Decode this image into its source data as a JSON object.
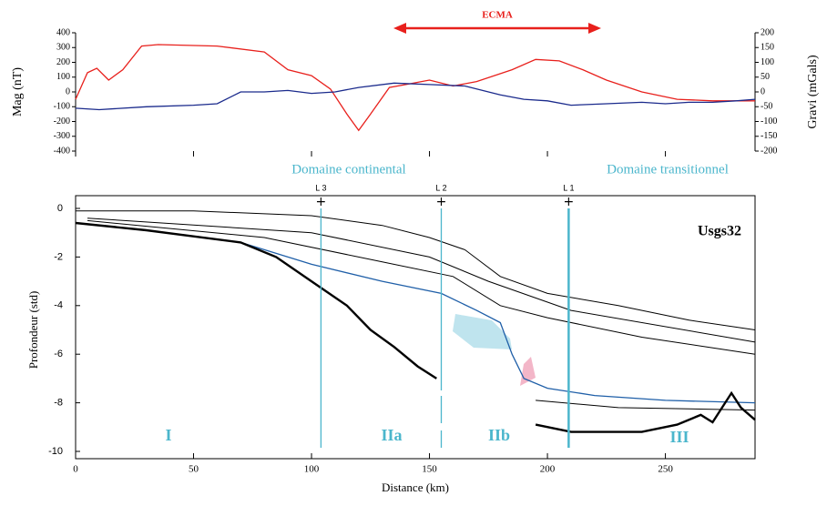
{
  "chart_data": [
    {
      "type": "line",
      "annotation": "ECMA",
      "ylabel": "Mag (nT)",
      "y2label": "Gravi (mGals)",
      "xlim": [
        0,
        288
      ],
      "ylim": [
        -400,
        400
      ],
      "yticks": [
        -400,
        -300,
        -200,
        -100,
        0,
        100,
        200,
        300,
        400
      ],
      "y2lim": [
        -200,
        200
      ],
      "y2ticks": [
        -200,
        -150,
        -100,
        -50,
        0,
        50,
        100,
        150,
        200
      ],
      "series": [
        {
          "name": "Mag",
          "color": "#e8201c",
          "x": [
            0,
            5,
            9,
            14,
            20,
            28,
            35,
            60,
            80,
            90,
            100,
            108,
            115,
            120,
            125,
            133,
            140,
            150,
            160,
            170,
            185,
            195,
            205,
            215,
            225,
            240,
            255,
            270,
            288
          ],
          "values": [
            -50,
            130,
            160,
            80,
            150,
            310,
            320,
            310,
            270,
            150,
            110,
            20,
            -150,
            -260,
            -150,
            30,
            50,
            80,
            40,
            70,
            150,
            220,
            210,
            150,
            80,
            0,
            -50,
            -60,
            -60
          ]
        },
        {
          "name": "Gravi",
          "color": "#1a2a8c",
          "axis": "y2",
          "x": [
            0,
            10,
            30,
            50,
            60,
            70,
            80,
            90,
            100,
            110,
            120,
            135,
            150,
            165,
            180,
            190,
            200,
            210,
            225,
            240,
            250,
            260,
            270,
            280,
            288
          ],
          "values": [
            -55,
            -60,
            -50,
            -45,
            -40,
            0,
            0,
            5,
            -5,
            0,
            15,
            30,
            25,
            20,
            -10,
            -25,
            -30,
            -45,
            -40,
            -35,
            -40,
            -35,
            -35,
            -30,
            -25
          ]
        }
      ]
    },
    {
      "type": "section",
      "xlabel": "Distance (km)",
      "ylabel": "Profondeur (std)",
      "xlim": [
        0,
        288
      ],
      "xticks": [
        0,
        50,
        100,
        150,
        200,
        250
      ],
      "ylim": [
        -10,
        0
      ],
      "yticks": [
        0,
        -2,
        -4,
        -6,
        -8,
        -10
      ],
      "annotations": [
        "Domaine continental",
        "Domaine transitionnel",
        "Usgs32",
        "I",
        "IIa",
        "IIb",
        "III"
      ],
      "wells": [
        {
          "name": "L 3",
          "x": 104
        },
        {
          "name": "L 2",
          "x": 155
        },
        {
          "name": "L 1",
          "x": 209
        }
      ],
      "series": [
        {
          "color": "#000000",
          "width": 1,
          "x": [
            0,
            50,
            100,
            130,
            150,
            165,
            180,
            200,
            230,
            260,
            288
          ],
          "values": [
            -0.1,
            -0.1,
            -0.3,
            -0.7,
            -1.2,
            -1.7,
            -2.8,
            -3.5,
            -4.0,
            -4.6,
            -5.0
          ]
        },
        {
          "color": "#000000",
          "width": 1,
          "x": [
            5,
            100,
            150,
            175,
            210,
            288
          ],
          "values": [
            -0.4,
            -1.0,
            -2.0,
            -3.0,
            -4.2,
            -5.5
          ]
        },
        {
          "color": "#000000",
          "width": 1,
          "x": [
            5,
            80,
            130,
            160,
            180,
            200,
            240,
            288
          ],
          "values": [
            -0.5,
            -1.2,
            -2.2,
            -2.8,
            -4.0,
            -4.5,
            -5.3,
            -6.0
          ]
        },
        {
          "color": "#1f5fa8",
          "width": 1.3,
          "x": [
            70,
            100,
            130,
            155,
            170,
            180,
            185,
            190,
            200,
            220,
            250,
            288
          ],
          "values": [
            -1.4,
            -2.3,
            -3.0,
            -3.5,
            -4.2,
            -4.7,
            -6.0,
            -7.0,
            -7.4,
            -7.7,
            -7.9,
            -8.0
          ]
        },
        {
          "color": "#000000",
          "width": 1,
          "x": [
            195,
            230,
            288
          ],
          "values": [
            -7.9,
            -8.2,
            -8.3
          ]
        },
        {
          "color": "#000000",
          "width": 2.4,
          "x": [
            0,
            30,
            70,
            85,
            100,
            115,
            125,
            135,
            145,
            153
          ],
          "values": [
            -0.6,
            -0.9,
            -1.4,
            -2.0,
            -3.0,
            -4.0,
            -5.0,
            -5.7,
            -6.5,
            -7.0
          ]
        },
        {
          "color": "#000000",
          "width": 2.4,
          "x": [
            195,
            210,
            240,
            255,
            265,
            270,
            278,
            282,
            288
          ],
          "values": [
            -8.9,
            -9.2,
            -9.2,
            -8.9,
            -8.5,
            -8.8,
            -7.6,
            -8.2,
            -8.7
          ]
        }
      ]
    }
  ]
}
